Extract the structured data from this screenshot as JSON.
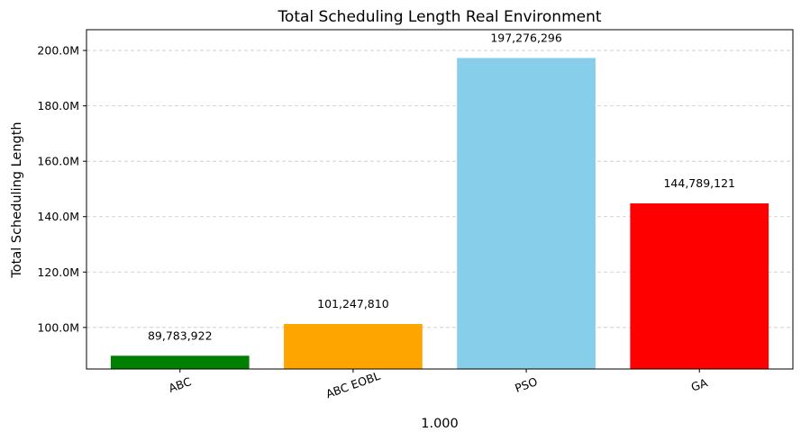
{
  "chart_data": {
    "type": "bar",
    "title": "Total Scheduling Length Real Environment",
    "xlabel": "1.000",
    "ylabel": "Total Scheduling Length",
    "categories": [
      "ABC",
      "ABC EOBL",
      "PSO",
      "GA"
    ],
    "values": [
      89783922,
      101247810,
      197276296,
      144789121
    ],
    "data_labels": [
      "89,783,922",
      "101,247,810",
      "197,276,296",
      "144,789,121"
    ],
    "colors": [
      "#008000",
      "#FFA500",
      "#87CEEB",
      "#FF0000"
    ],
    "ylim": [
      85000000,
      207500000
    ],
    "yticks": [
      100000000,
      120000000,
      140000000,
      160000000,
      180000000,
      200000000
    ],
    "ytick_labels": [
      "100.0M",
      "120.0M",
      "140.0M",
      "160.0M",
      "180.0M",
      "200.0M"
    ],
    "grid": "y-dashed",
    "xtick_rotation": "20deg"
  }
}
